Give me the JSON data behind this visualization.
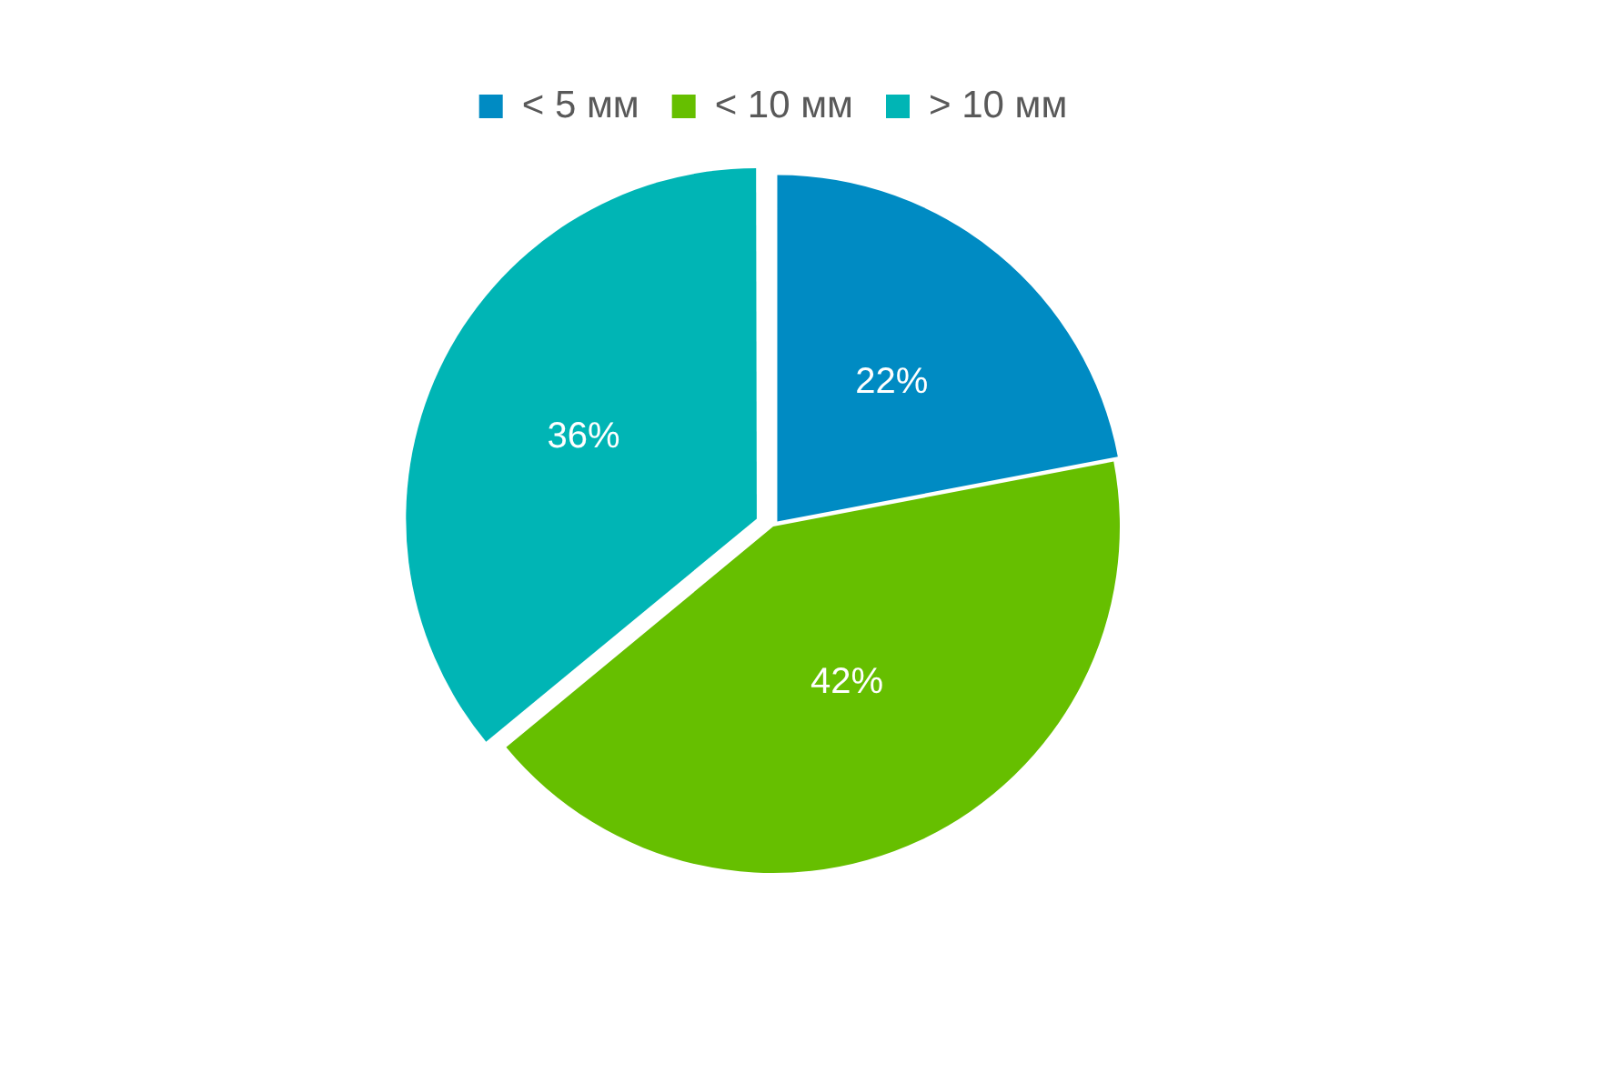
{
  "chart_data": {
    "type": "pie",
    "categories": [
      "< 5 мм",
      "< 10 мм",
      "> 10 мм"
    ],
    "values": [
      22,
      42,
      36
    ],
    "colors": [
      "#008bc3",
      "#66bf00",
      "#00b5b5"
    ],
    "value_labels": [
      "22%",
      "42%",
      "36%"
    ],
    "legend": "top"
  }
}
